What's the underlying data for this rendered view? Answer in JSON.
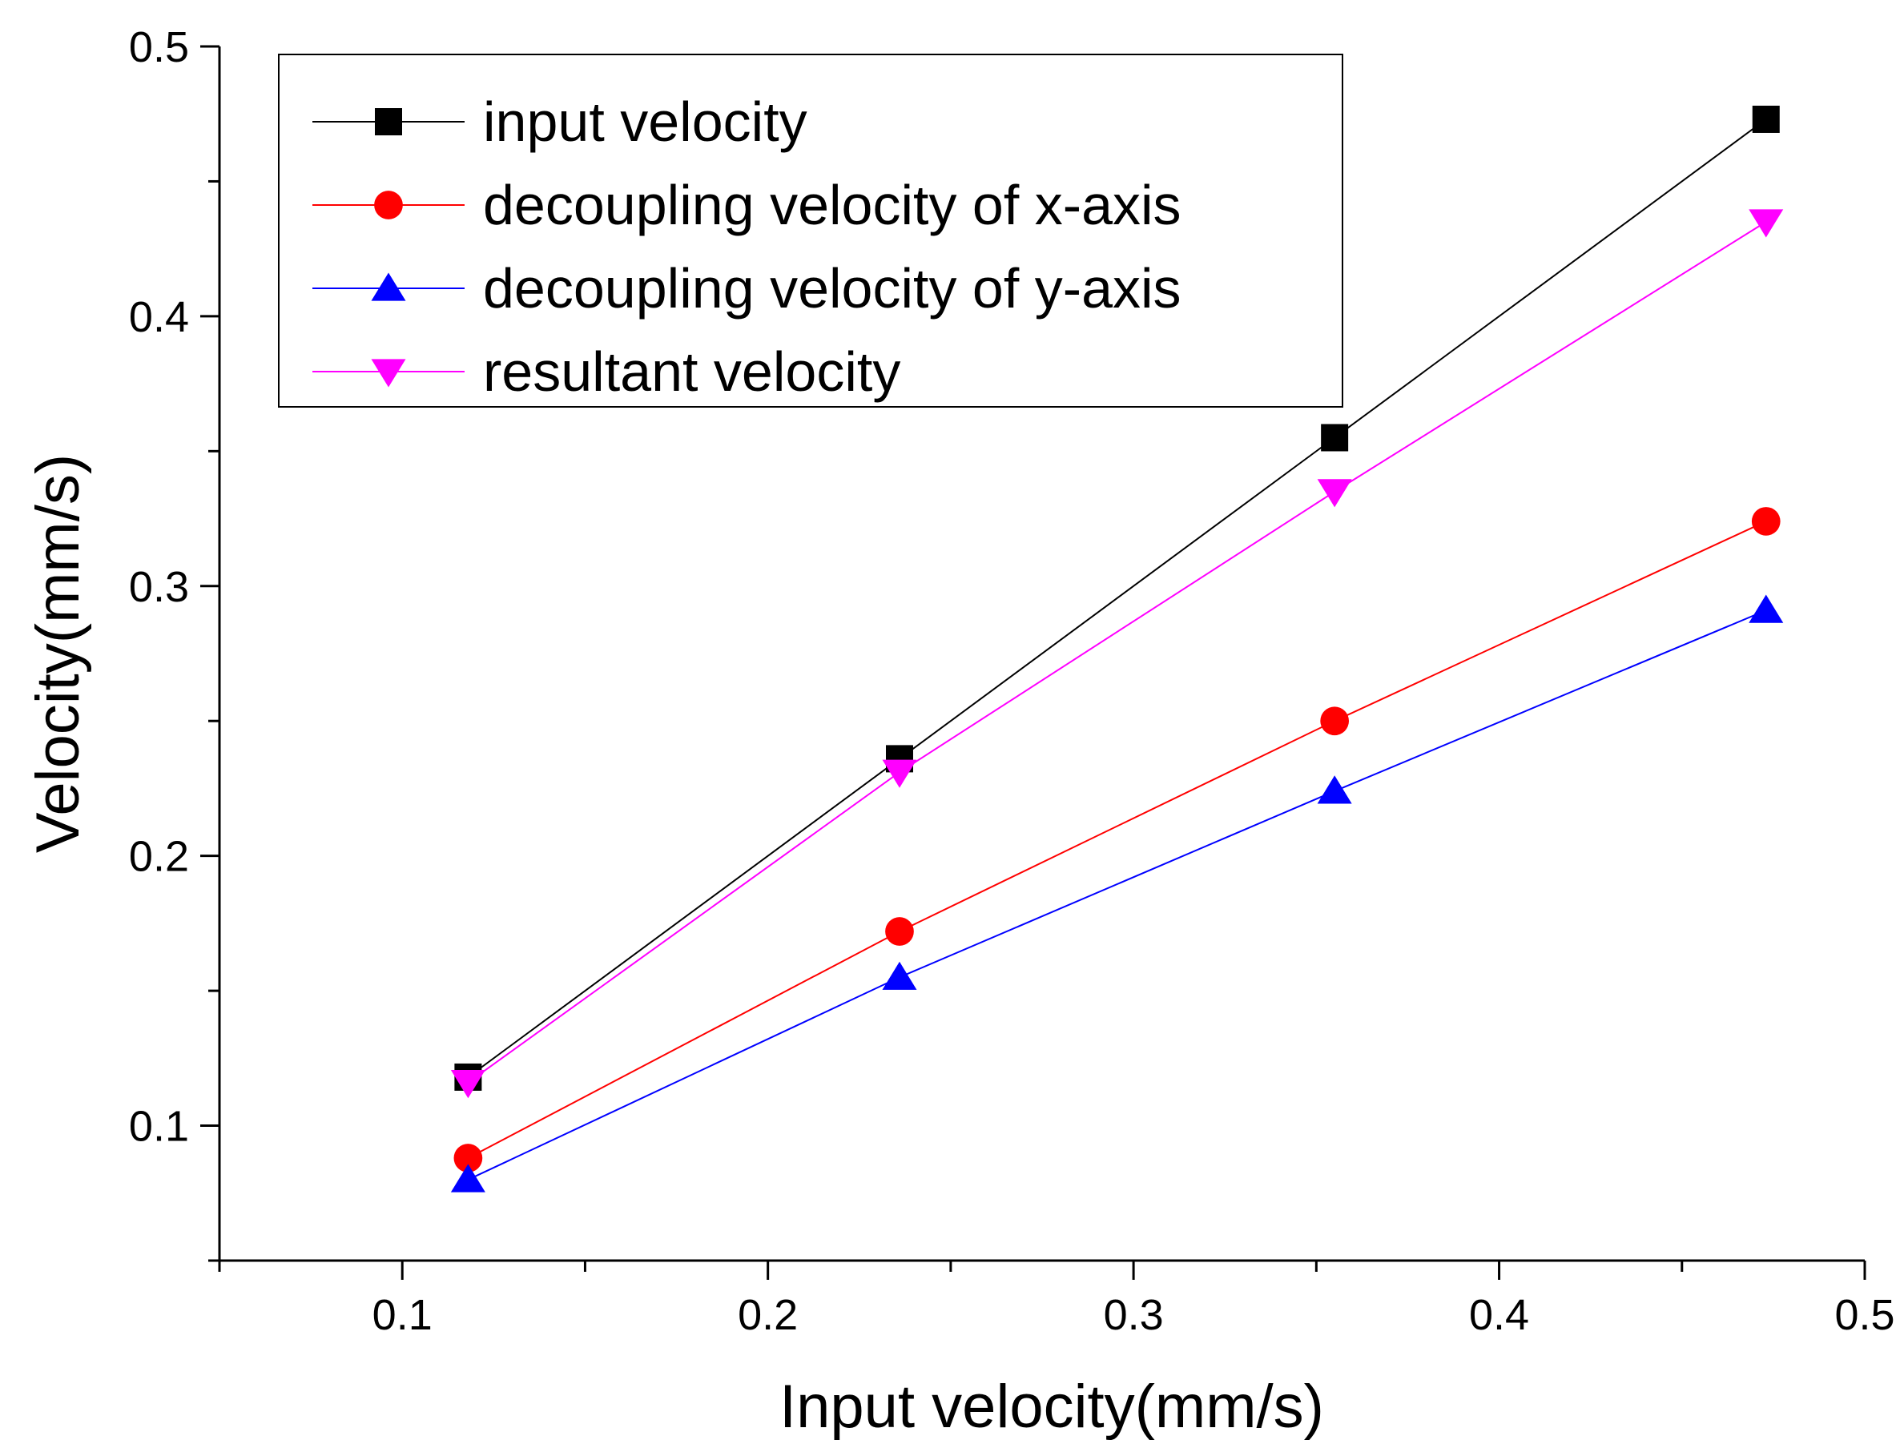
{
  "chart_data": {
    "type": "line",
    "title": "",
    "xlabel": "Input velocity(mm/s)",
    "ylabel": "Velocity(mm/s)",
    "xlim": [
      0.05,
      0.5
    ],
    "ylim": [
      0.05,
      0.5
    ],
    "x_ticks": [
      "0.1",
      "0.2",
      "0.3",
      "0.4",
      "0.5"
    ],
    "y_ticks": [
      "0.1",
      "0.2",
      "0.3",
      "0.4",
      "0.5"
    ],
    "x": [
      0.118,
      0.236,
      0.355,
      0.473
    ],
    "legend_position": "top-left",
    "series": [
      {
        "name": "input velocity",
        "values": [
          0.118,
          0.236,
          0.355,
          0.473
        ],
        "color": "#000000",
        "marker": "square"
      },
      {
        "name": "decoupling velocity of x-axis",
        "values": [
          0.088,
          0.172,
          0.25,
          0.324
        ],
        "color": "#ff0000",
        "marker": "circle"
      },
      {
        "name": "decoupling velocity of y-axis",
        "values": [
          0.08,
          0.155,
          0.224,
          0.291
        ],
        "color": "#0000ff",
        "marker": "triangle-up"
      },
      {
        "name": "resultant velocity",
        "values": [
          0.116,
          0.231,
          0.335,
          0.435
        ],
        "color": "#ff00ff",
        "marker": "triangle-down"
      }
    ]
  }
}
